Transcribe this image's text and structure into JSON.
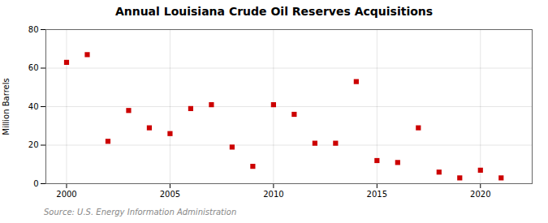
{
  "chart_data": {
    "type": "scatter",
    "title": "Annual Louisiana Crude Oil Reserves Acquisitions",
    "ylabel": "Million Barrels",
    "source": "Source: U.S. Energy Information Administration",
    "x": [
      2000,
      2001,
      2002,
      2003,
      2004,
      2005,
      2006,
      2007,
      2008,
      2009,
      2010,
      2011,
      2012,
      2013,
      2014,
      2015,
      2016,
      2017,
      2018,
      2019,
      2020,
      2021
    ],
    "values": [
      63,
      67,
      22,
      38,
      29,
      26,
      39,
      41,
      19,
      9,
      41,
      36,
      21,
      21,
      53,
      12,
      11,
      29,
      6,
      3,
      7,
      3
    ],
    "color": "#cc0000",
    "marker": "square",
    "xlim": [
      1999,
      2022.5
    ],
    "xticks": [
      2000,
      2005,
      2010,
      2015,
      2020
    ],
    "ylim": [
      0,
      80
    ],
    "yticks": [
      0,
      20,
      40,
      60,
      80
    ],
    "grid": true
  }
}
